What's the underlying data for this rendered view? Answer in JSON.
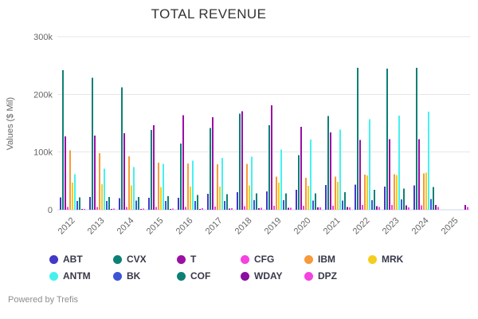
{
  "footer": "Powered by Trefis",
  "chart_data": {
    "type": "bar",
    "title": "TOTAL REVENUE",
    "ylabel": "Values ($ Mil)",
    "xlabel": "",
    "ylim": [
      0,
      300000
    ],
    "yticks": [
      [
        0,
        "0"
      ],
      [
        100000,
        "100k"
      ],
      [
        200000,
        "200k"
      ],
      [
        300000,
        "300k"
      ]
    ],
    "grid": true,
    "legend_position": "bottom",
    "categories": [
      "2012",
      "2013",
      "2014",
      "2015",
      "2016",
      "2017",
      "2018",
      "2019",
      "2020",
      "2021",
      "2022",
      "2023",
      "2024",
      "2025"
    ],
    "series": [
      {
        "name": "ABT",
        "color": "#4338c8",
        "values": [
          21500,
          21850,
          20250,
          20400,
          20850,
          27390,
          30580,
          31900,
          34610,
          43080,
          43650,
          40110,
          41950,
          0
        ]
      },
      {
        "name": "CVX",
        "color": "#0d8076",
        "values": [
          241900,
          228800,
          212000,
          138500,
          114500,
          141700,
          166300,
          146500,
          94700,
          162500,
          246300,
          244500,
          245900,
          0
        ]
      },
      {
        "name": "T",
        "color": "#9c0fa5",
        "values": [
          127400,
          128800,
          132450,
          146800,
          163790,
          160550,
          170760,
          181190,
          143940,
          134040,
          120740,
          122430,
          122340,
          0
        ]
      },
      {
        "name": "CFG",
        "color": "#f542e0",
        "values": [
          4900,
          4700,
          5000,
          4820,
          5040,
          5710,
          6130,
          6580,
          6910,
          6750,
          8020,
          8210,
          7920,
          0
        ]
      },
      {
        "name": "IBM",
        "color": "#f8993c",
        "values": [
          102900,
          98400,
          92790,
          81740,
          79920,
          79140,
          79590,
          57710,
          55180,
          57350,
          60530,
          61860,
          62750,
          0
        ]
      },
      {
        "name": "MRK",
        "color": "#f5cd1f",
        "values": [
          47270,
          44030,
          42240,
          39500,
          39810,
          40120,
          42290,
          46840,
          41520,
          48700,
          59280,
          60110,
          64170,
          0
        ]
      },
      {
        "name": "ANTM",
        "color": "#45f1ef",
        "values": [
          61710,
          71020,
          73870,
          79160,
          84860,
          90040,
          92110,
          104210,
          121870,
          138640,
          156600,
          163000,
          170200,
          0
        ]
      },
      {
        "name": "BK",
        "color": "#3c55d6",
        "values": [
          15500,
          15050,
          15690,
          15190,
          15240,
          15540,
          16370,
          16460,
          15800,
          15930,
          16380,
          17680,
          18550,
          0
        ]
      },
      {
        "name": "COF",
        "color": "#0d8076",
        "values": [
          21400,
          22400,
          22260,
          23410,
          25500,
          27240,
          28080,
          28590,
          28520,
          30430,
          34250,
          36790,
          39110,
          0
        ]
      },
      {
        "name": "WDAY",
        "color": "#8a0f9e",
        "values": [
          270,
          470,
          790,
          1160,
          1570,
          2140,
          2820,
          3630,
          4320,
          5140,
          6220,
          7260,
          8450,
          8450
        ]
      },
      {
        "name": "DPZ",
        "color": "#f542e0",
        "values": [
          1700,
          1800,
          1990,
          2220,
          2470,
          2790,
          3430,
          3620,
          4120,
          4360,
          4540,
          4480,
          4710,
          4800
        ]
      }
    ]
  }
}
